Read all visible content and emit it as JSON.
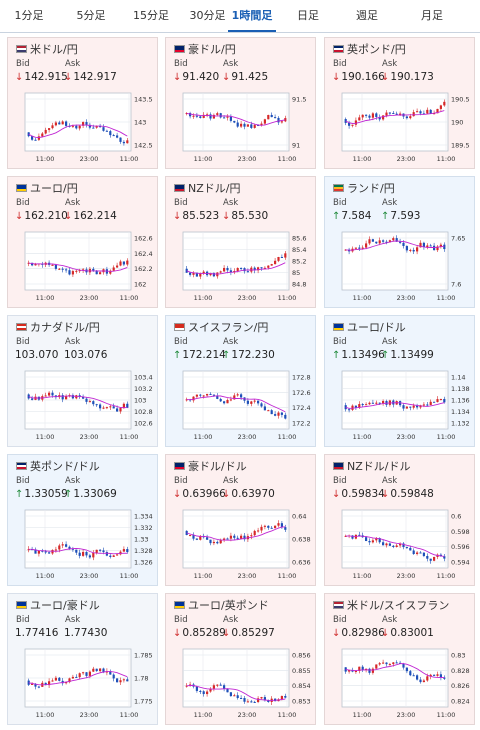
{
  "tabs": [
    "1分足",
    "5分足",
    "15分足",
    "30分足",
    "1時間足",
    "日足",
    "週足",
    "月足"
  ],
  "active_tab": 4,
  "labels": {
    "bid": "Bid",
    "ask": "Ask"
  },
  "colors": {
    "up_candle": "#d62828",
    "down_candle": "#1d4fb8",
    "ma_line": "#c026d3",
    "accent": "#1a5fb4"
  },
  "cards": [
    {
      "pair": "米ドル/円",
      "flag": "us-flag-icon",
      "trend": "down",
      "bid": "142.915",
      "ask": "142.917",
      "yticks": [
        "143.5",
        "143",
        "142.5"
      ],
      "xticks": [
        "11:00",
        "23:00",
        "11:00"
      ]
    },
    {
      "pair": "豪ドル/円",
      "flag": "au-flag-icon",
      "trend": "down",
      "bid": "91.420",
      "ask": "91.425",
      "yticks": [
        "91.5",
        "91"
      ],
      "xticks": [
        "11:00",
        "23:00",
        "11:00"
      ]
    },
    {
      "pair": "英ポンド/円",
      "flag": "gb-flag-icon",
      "trend": "down",
      "bid": "190.166",
      "ask": "190.173",
      "yticks": [
        "190.5",
        "190",
        "189.5"
      ],
      "xticks": [
        "11:00",
        "23:00",
        "11:00"
      ]
    },
    {
      "pair": "ユーロ/円",
      "flag": "eu-flag-icon",
      "trend": "down",
      "bid": "162.210",
      "ask": "162.214",
      "yticks": [
        "162.6",
        "162.4",
        "162.2",
        "162"
      ],
      "xticks": [
        "11:00",
        "23:00",
        "11:00"
      ]
    },
    {
      "pair": "NZドル/円",
      "flag": "nz-flag-icon",
      "trend": "down",
      "bid": "85.523",
      "ask": "85.530",
      "yticks": [
        "85.6",
        "85.4",
        "85.2",
        "85",
        "84.8"
      ],
      "xticks": [
        "11:00",
        "23:00",
        "11:00"
      ]
    },
    {
      "pair": "ランド/円",
      "flag": "za-flag-icon",
      "trend": "up",
      "bid": "7.584",
      "ask": "7.593",
      "yticks": [
        "7.65",
        "7.6"
      ],
      "xticks": [
        "11:00",
        "23:00",
        "11:00"
      ]
    },
    {
      "pair": "カナダドル/円",
      "flag": "ca-flag-icon",
      "trend": "flat",
      "bid": "103.070",
      "ask": "103.076",
      "yticks": [
        "103.4",
        "103.2",
        "103",
        "102.8",
        "102.6"
      ],
      "xticks": [
        "11:00",
        "23:00",
        "11:00"
      ]
    },
    {
      "pair": "スイスフラン/円",
      "flag": "ch-flag-icon",
      "trend": "up",
      "bid": "172.214",
      "ask": "172.230",
      "yticks": [
        "172.8",
        "172.6",
        "172.4",
        "172.2"
      ],
      "xticks": [
        "11:00",
        "23:00",
        "11:00"
      ]
    },
    {
      "pair": "ユーロ/ドル",
      "flag": "eu-flag-icon",
      "trend": "up",
      "bid": "1.13496",
      "ask": "1.13499",
      "yticks": [
        "1.14",
        "1.138",
        "1.136",
        "1.134",
        "1.132"
      ],
      "xticks": [
        "11:00",
        "23:00",
        "11:00"
      ]
    },
    {
      "pair": "英ポンド/ドル",
      "flag": "gb-flag-icon",
      "trend": "up",
      "bid": "1.33059",
      "ask": "1.33069",
      "yticks": [
        "1.334",
        "1.332",
        "1.33",
        "1.328",
        "1.326"
      ],
      "xticks": [
        "11:00",
        "23:00",
        "11:00"
      ]
    },
    {
      "pair": "豪ドル/ドル",
      "flag": "au-flag-icon",
      "trend": "down",
      "bid": "0.63966",
      "ask": "0.63970",
      "yticks": [
        "0.64",
        "0.638",
        "0.636"
      ],
      "xticks": [
        "11:00",
        "23:00",
        "11:00"
      ]
    },
    {
      "pair": "NZドル/ドル",
      "flag": "nz-flag-icon",
      "trend": "down",
      "bid": "0.59834",
      "ask": "0.59848",
      "yticks": [
        "0.6",
        "0.598",
        "0.596",
        "0.594"
      ],
      "xticks": [
        "11:00",
        "23:00",
        "11:00"
      ]
    },
    {
      "pair": "ユーロ/豪ドル",
      "flag": "eu-flag-icon",
      "trend": "flat",
      "bid": "1.77416",
      "ask": "1.77430",
      "yticks": [
        "1.785",
        "1.78",
        "1.775"
      ],
      "xticks": [
        "11:00",
        "23:00",
        "11:00"
      ]
    },
    {
      "pair": "ユーロ/英ポンド",
      "flag": "eu-flag-icon",
      "trend": "down",
      "bid": "0.85289",
      "ask": "0.85297",
      "yticks": [
        "0.856",
        "0.855",
        "0.854",
        "0.853"
      ],
      "xticks": [
        "11:00",
        "23:00",
        "11:00"
      ]
    },
    {
      "pair": "米ドル/スイスフラン",
      "flag": "us-flag-icon",
      "trend": "down",
      "bid": "0.82986",
      "ask": "0.83001",
      "yticks": [
        "0.83",
        "0.828",
        "0.826",
        "0.824"
      ],
      "xticks": [
        "11:00",
        "23:00",
        "11:00"
      ]
    }
  ]
}
